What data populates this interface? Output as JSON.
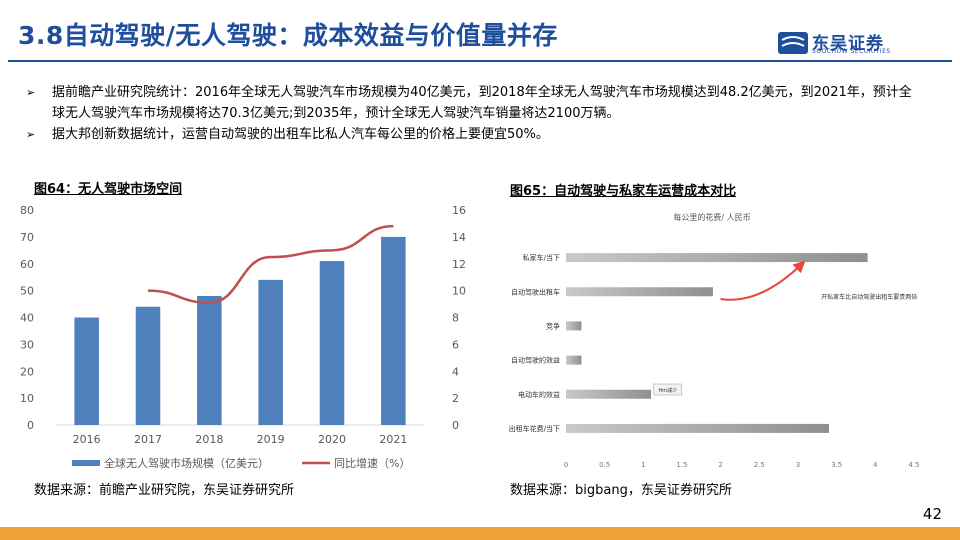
{
  "slide": {
    "title": "3.8自动驾驶/无人驾驶：成本效益与价值量并存",
    "page_number": "42",
    "logo_text": "东吴证券",
    "logo_sub": "SOOCHOW SECURITIES",
    "colors": {
      "title_blue": "#1f4e9c",
      "bar_blue": "#4f81bd",
      "line_red": "#c0504d",
      "bottom_bar": "#f0a13a"
    }
  },
  "bullets": [
    "据前瞻产业研究院统计：2016年全球无人驾驶汽车市场规模为40亿美元，到2018年全球无人驾驶汽车市场规模达到48.2亿美元，到2021年，预计全球无人驾驶汽车市场规模将达70.3亿美元;到2035年，预计全球无人驾驶汽车销量将达2100万辆。",
    "据大邦创新数据统计，运营自动驾驶的出租车比私人汽车每公里的价格上要便宜50%。"
  ],
  "figure_left": {
    "caption": "图64：无人驾驶市场空间",
    "source": "数据来源：前瞻产业研究院，东吴证券研究所"
  },
  "figure_right": {
    "caption": "图65：自动驾驶与私家车运营成本对比",
    "source": "数据来源：bigbang，东吴证券研究所"
  },
  "chart_data": [
    {
      "type": "bar",
      "categories": [
        "2016",
        "2017",
        "2018",
        "2019",
        "2020",
        "2021"
      ],
      "series": [
        {
          "name": "全球无人驾驶市场规模（亿美元）",
          "type": "bar",
          "axis": "left",
          "values": [
            40,
            44,
            48,
            54,
            61,
            70
          ]
        },
        {
          "name": "同比增速（%）",
          "type": "line",
          "axis": "right",
          "values": [
            null,
            10,
            9.1,
            12.5,
            13,
            14.8
          ]
        }
      ],
      "y_left": {
        "lim": [
          0,
          80
        ],
        "ticks": [
          0,
          10,
          20,
          30,
          40,
          50,
          60,
          70,
          80
        ]
      },
      "y_right": {
        "lim": [
          0,
          16
        ],
        "ticks": [
          0,
          2,
          4,
          6,
          8,
          10,
          12,
          14,
          16
        ]
      },
      "legend": "bottom"
    },
    {
      "type": "bar",
      "orientation": "horizontal",
      "title": "每公里的花费/ 人民币",
      "categories": [
        "私家车/当下",
        "自动驾驶出租车",
        "竞争",
        "自动驾驶的效益",
        "电动车的效益",
        "出租车花费/当下"
      ],
      "values": [
        3.9,
        1.9,
        0.2,
        0.2,
        1.1,
        3.4
      ],
      "xlim": [
        0,
        4.5
      ],
      "x_ticks": [
        "0",
        "0.5",
        "1",
        "1.5",
        "2",
        "2.5",
        "3",
        "3.5",
        "4",
        "4.5"
      ],
      "annotations": [
        "开私家车比自动驾驶出租车要贵两倍",
        "Hm减少"
      ]
    }
  ]
}
